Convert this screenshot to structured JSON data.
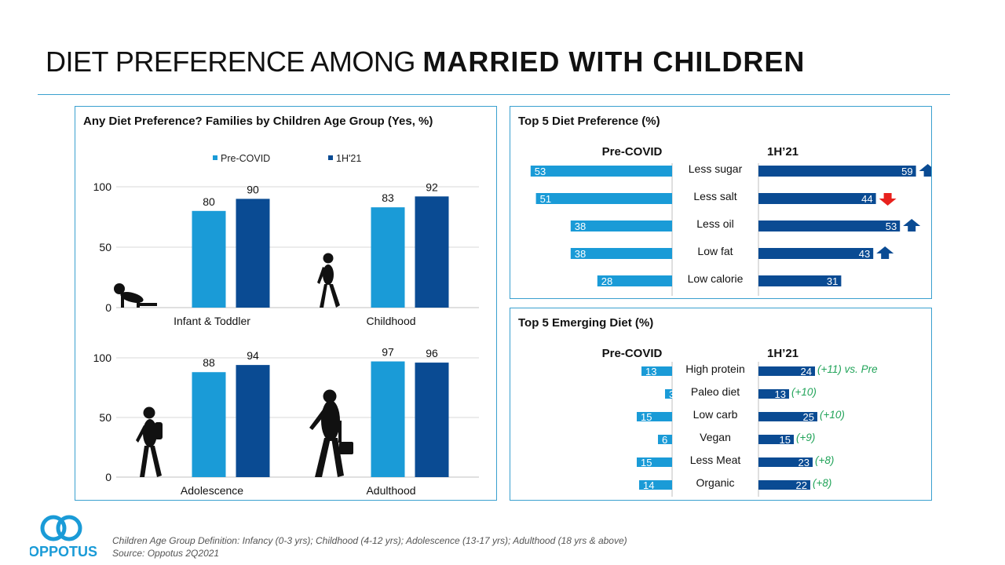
{
  "header": {
    "title_regular": "DIET PREFERENCE AMONG ",
    "title_bold": "MARRIED WITH CHILDREN"
  },
  "colors": {
    "pre": "#1a9bd7",
    "h1": "#0a4b93",
    "up_arrow": "#0a4b93",
    "down_arrow": "#e8211d",
    "delta_text": "#22a45a",
    "panel_border": "#3aa0cf"
  },
  "left_panel": {
    "title": "Any Diet Preference? Families by Children Age Group (Yes, %)"
  },
  "top_right_panel": {
    "title": "Top 5 Diet Preference (%)"
  },
  "bottom_right_panel": {
    "title": "Top 5 Emerging Diet (%)"
  },
  "chart_data": [
    {
      "type": "bar",
      "legend": [
        "Pre-COVID",
        "1H'21"
      ],
      "legend_position": "top",
      "ylim": [
        0,
        100
      ],
      "yticks": [
        0,
        50,
        100
      ],
      "categories": [
        "Infant & Toddler",
        "Childhood"
      ],
      "series": [
        {
          "name": "Pre-COVID",
          "values": [
            80,
            83
          ]
        },
        {
          "name": "1H'21",
          "values": [
            90,
            92
          ]
        }
      ],
      "icons": [
        "crawling-baby-icon",
        "child-silhouette-icon"
      ]
    },
    {
      "type": "bar",
      "ylim": [
        0,
        100
      ],
      "yticks": [
        0,
        50,
        100
      ],
      "categories": [
        "Adolescence",
        "Adulthood"
      ],
      "series": [
        {
          "name": "Pre-COVID",
          "values": [
            88,
            97
          ]
        },
        {
          "name": "1H'21",
          "values": [
            94,
            96
          ]
        }
      ],
      "icons": [
        "teen-with-backpack-icon",
        "adult-with-briefcase-icon"
      ]
    },
    {
      "type": "bar",
      "orientation": "butterfly",
      "left_header": "Pre-COVID",
      "right_header": "1H’21",
      "categories": [
        "Less sugar",
        "Less salt",
        "Less oil",
        "Low fat",
        "Low calorie"
      ],
      "series": [
        {
          "name": "Pre-COVID",
          "values": [
            53,
            51,
            38,
            38,
            28
          ]
        },
        {
          "name": "1H’21",
          "values": [
            59,
            44,
            53,
            43,
            31
          ]
        }
      ],
      "trend": [
        "up",
        "down",
        "up",
        "up",
        ""
      ]
    },
    {
      "type": "bar",
      "orientation": "butterfly",
      "left_header": "Pre-COVID",
      "right_header": "1H’21",
      "categories": [
        "High protein",
        "Paleo diet",
        "Low carb",
        "Vegan",
        "Less Meat",
        "Organic"
      ],
      "series": [
        {
          "name": "Pre-COVID",
          "values": [
            13,
            3,
            15,
            6,
            15,
            14
          ]
        },
        {
          "name": "1H’21",
          "values": [
            24,
            13,
            25,
            15,
            23,
            22
          ]
        }
      ],
      "annotations": [
        "(+11) vs. Pre",
        "(+10)",
        "(+10)",
        "(+9)",
        "(+8)",
        "(+8)"
      ]
    }
  ],
  "footnotes": [
    "Children Age Group Definition: Infancy (0-3 yrs); Childhood (4-12 yrs); Adolescence (13-17 yrs); Adulthood (18 yrs & above)",
    "Source: Oppotus 2Q2021"
  ],
  "logo": {
    "text": "OPPOTUS",
    "color": "#1a9bd7"
  }
}
